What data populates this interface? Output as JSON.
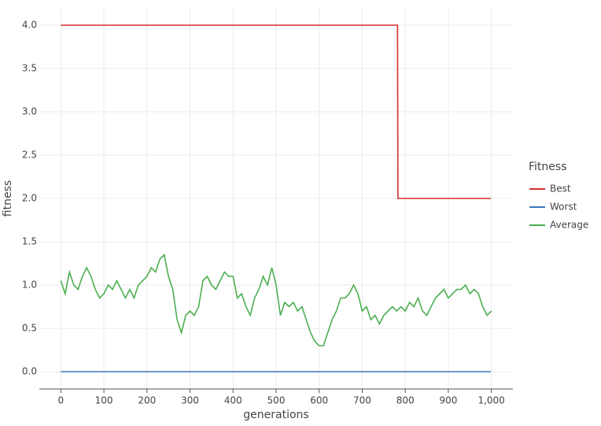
{
  "chart_data": {
    "type": "line",
    "xlabel": "generations",
    "ylabel": "fitness",
    "legend_title": "Fitness",
    "legend": "right",
    "grid": true,
    "xlim": [
      -50,
      1050
    ],
    "ylim": [
      -0.2,
      4.2
    ],
    "xticks": [
      0,
      100,
      200,
      300,
      400,
      500,
      600,
      700,
      800,
      900,
      {
        "value": 1000,
        "label": "1,000"
      }
    ],
    "yticks": [
      {
        "value": 0,
        "label": "0.0"
      },
      0.5,
      {
        "value": 1,
        "label": "1.0"
      },
      1.5,
      {
        "value": 2,
        "label": "2.0"
      },
      2.5,
      {
        "value": 3,
        "label": "3.0"
      },
      3.5,
      {
        "value": 4,
        "label": "4.0"
      }
    ],
    "series": [
      {
        "name": "Best",
        "color": "#d62f2f",
        "x": [
          0,
          782,
          783,
          999
        ],
        "values": [
          4,
          4,
          2,
          2
        ]
      },
      {
        "name": "Worst",
        "color": "#3a78b8",
        "x": [
          0,
          999
        ],
        "values": [
          0,
          0
        ]
      },
      {
        "name": "Average",
        "color": "#4caf50",
        "x": [
          0,
          10,
          20,
          30,
          40,
          50,
          60,
          70,
          80,
          90,
          100,
          110,
          120,
          130,
          140,
          150,
          160,
          170,
          180,
          190,
          200,
          210,
          220,
          230,
          240,
          250,
          260,
          270,
          280,
          290,
          300,
          310,
          320,
          330,
          340,
          350,
          360,
          370,
          380,
          390,
          400,
          410,
          420,
          430,
          440,
          450,
          460,
          470,
          480,
          490,
          500,
          510,
          520,
          530,
          540,
          550,
          560,
          570,
          580,
          590,
          600,
          610,
          620,
          630,
          640,
          650,
          660,
          670,
          680,
          690,
          700,
          710,
          720,
          730,
          740,
          750,
          760,
          770,
          780,
          790,
          800,
          810,
          820,
          830,
          840,
          850,
          860,
          870,
          880,
          890,
          900,
          910,
          920,
          930,
          940,
          950,
          960,
          970,
          980,
          990,
          1000
        ],
        "values": [
          1.05,
          0.9,
          1.15,
          1.0,
          0.95,
          1.1,
          1.2,
          1.1,
          0.95,
          0.85,
          0.9,
          1.0,
          0.95,
          1.05,
          0.95,
          0.85,
          0.95,
          0.85,
          1.0,
          1.05,
          1.1,
          1.2,
          1.15,
          1.3,
          1.35,
          1.1,
          0.95,
          0.6,
          0.45,
          0.65,
          0.7,
          0.65,
          0.75,
          1.05,
          1.1,
          1.0,
          0.95,
          1.05,
          1.15,
          1.1,
          1.1,
          0.85,
          0.9,
          0.75,
          0.65,
          0.85,
          0.95,
          1.1,
          1.0,
          1.2,
          1.0,
          0.65,
          0.8,
          0.75,
          0.8,
          0.7,
          0.75,
          0.6,
          0.45,
          0.35,
          0.3,
          0.3,
          0.45,
          0.6,
          0.7,
          0.85,
          0.85,
          0.9,
          1.0,
          0.9,
          0.7,
          0.75,
          0.6,
          0.65,
          0.55,
          0.65,
          0.7,
          0.75,
          0.7,
          0.75,
          0.7,
          0.8,
          0.75,
          0.85,
          0.7,
          0.65,
          0.75,
          0.85,
          0.9,
          0.95,
          0.85,
          0.9,
          0.95,
          0.95,
          1.0,
          0.9,
          0.95,
          0.9,
          0.75,
          0.65,
          0.7
        ]
      }
    ]
  }
}
